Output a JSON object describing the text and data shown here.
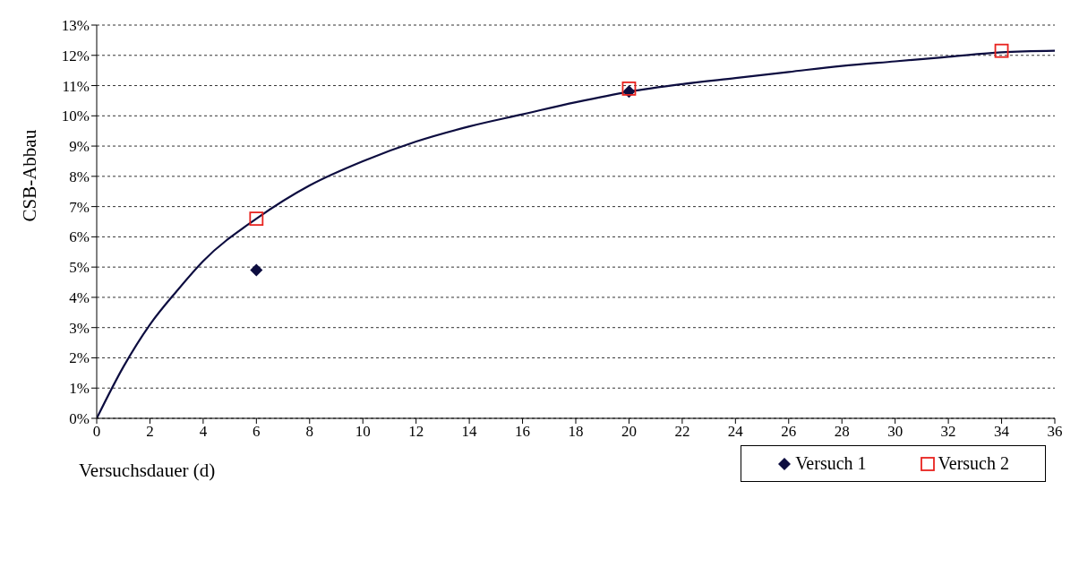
{
  "chart_data": {
    "type": "scatter",
    "xlabel": "Versuchsdauer (d)",
    "ylabel": "CSB-Abbau",
    "xlim": [
      0,
      36
    ],
    "xticks": [
      0,
      2,
      4,
      6,
      8,
      10,
      12,
      14,
      16,
      18,
      20,
      22,
      24,
      26,
      28,
      30,
      32,
      34,
      36
    ],
    "ylim": [
      0,
      13
    ],
    "yticks": [
      {
        "value": 0,
        "label": "0%"
      },
      {
        "value": 1,
        "label": "1%"
      },
      {
        "value": 2,
        "label": "2%"
      },
      {
        "value": 3,
        "label": "3%"
      },
      {
        "value": 4,
        "label": "4%"
      },
      {
        "value": 5,
        "label": "5%"
      },
      {
        "value": 6,
        "label": "6%"
      },
      {
        "value": 7,
        "label": "7%"
      },
      {
        "value": 8,
        "label": "8%"
      },
      {
        "value": 9,
        "label": "9%"
      },
      {
        "value": 10,
        "label": "10%"
      },
      {
        "value": 11,
        "label": "11%"
      },
      {
        "value": 12,
        "label": "12%"
      },
      {
        "value": 13,
        "label": "13%"
      }
    ],
    "grid": "y",
    "legend": "bottom right",
    "series": [
      {
        "type": "line",
        "color": "#0d0d40",
        "marker": "none",
        "line_style": "solid",
        "x": [
          0,
          1,
          2,
          3,
          4,
          6,
          8,
          10,
          12,
          14,
          16,
          18,
          20,
          22,
          24,
          26,
          28,
          30,
          32,
          34,
          36
        ],
        "values": [
          0,
          1.7,
          3.1,
          4.2,
          5.2,
          6.6,
          7.7,
          8.5,
          9.15,
          9.65,
          10.05,
          10.45,
          10.8,
          11.05,
          11.25,
          11.45,
          11.65,
          11.8,
          11.95,
          12.1,
          12.15
        ]
      },
      {
        "name": "Versuch 1",
        "color": "#0d0d40",
        "marker": "diamond",
        "x": [
          6,
          20
        ],
        "values": [
          4.9,
          10.8
        ]
      },
      {
        "name": "Versuch 2",
        "color": "#e8231f",
        "marker": "square",
        "x": [
          6,
          20,
          34
        ],
        "values": [
          6.6,
          10.9,
          12.15
        ]
      }
    ]
  }
}
